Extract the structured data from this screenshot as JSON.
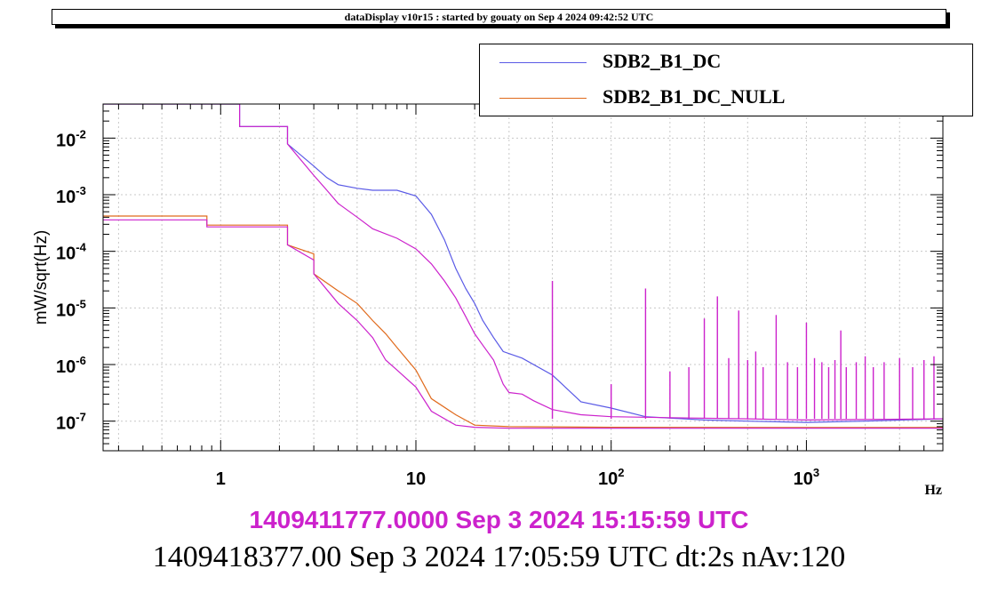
{
  "window": {
    "title": "dataDisplay v10r15 : started by gouaty on Sep  4 2024 09:42:52 UTC"
  },
  "colors": {
    "background": "#ffffff",
    "reference_time": "#cc22cc",
    "grid": "#c8c8c8"
  },
  "timestamps": {
    "reference": "1409411777.0000 Sep 3 2024 15:15:59 UTC",
    "current": "1409418377.00 Sep 3 2024 17:05:59 UTC dt:2s nAv:120"
  },
  "chart_data": {
    "type": "line",
    "title": "",
    "xlabel": "Hz",
    "ylabel": "mW/sqrt(Hz)",
    "x_scale": "log",
    "y_scale": "log",
    "xlim": [
      0.25,
      5000
    ],
    "ylim": [
      3e-08,
      0.04
    ],
    "grid": true,
    "legend_position": "top-right",
    "x_ticks": [
      {
        "value": 1,
        "label": "1"
      },
      {
        "value": 10,
        "label": "10"
      },
      {
        "value": 100,
        "label": "10",
        "exp": "2"
      },
      {
        "value": 1000,
        "label": "10",
        "exp": "3"
      }
    ],
    "y_ticks": [
      {
        "value": 0.01,
        "base": "10",
        "exp": "-2"
      },
      {
        "value": 0.001,
        "base": "10",
        "exp": "-3"
      },
      {
        "value": 0.0001,
        "base": "10",
        "exp": "-4"
      },
      {
        "value": 1e-05,
        "base": "10",
        "exp": "-5"
      },
      {
        "value": 1e-06,
        "base": "10",
        "exp": "-6"
      },
      {
        "value": 1e-07,
        "base": "10",
        "exp": "-7"
      }
    ],
    "series": [
      {
        "name": "SDB2_B1_DC",
        "color": "#5a5ae6",
        "x": [
          0.25,
          1.25,
          1.25,
          2.2,
          2.2,
          3.0,
          3.5,
          4.0,
          5.0,
          6.0,
          8.0,
          10.0,
          12.0,
          14.0,
          16.0,
          18.0,
          20.0,
          22.0,
          25.0,
          28.0,
          35.0,
          50.0,
          70.0,
          100.0,
          150.0,
          300.0,
          500.0,
          1000.0,
          2000.0,
          5000.0
        ],
        "y": [
          0.04,
          0.04,
          0.016,
          0.016,
          0.0079,
          0.0032,
          0.002,
          0.0015,
          0.0013,
          0.0012,
          0.0012,
          0.00095,
          0.00045,
          0.00016,
          5e-05,
          2.2e-05,
          1.2e-05,
          6e-06,
          3e-06,
          1.7e-06,
          1.3e-06,
          6.5e-07,
          2.2e-07,
          1.7e-07,
          1.2e-07,
          1.05e-07,
          1e-07,
          9.5e-08,
          1e-07,
          1.1e-07
        ]
      },
      {
        "name": "SDB2_B1_DC_NULL",
        "color": "#e06a1c",
        "x": [
          0.25,
          0.85,
          0.85,
          1.25,
          2.2,
          2.2,
          3.0,
          3.0,
          4.0,
          5.0,
          6.0,
          7.0,
          8.0,
          10.0,
          12.0,
          16.0,
          20.0,
          30.0,
          100.0,
          1000.0,
          5000.0
        ],
        "y": [
          0.00042,
          0.00042,
          0.00029,
          0.00029,
          0.00029,
          0.00013,
          9e-05,
          4e-05,
          2e-05,
          1.2e-05,
          6e-06,
          3.5e-06,
          2e-06,
          8e-07,
          2.5e-07,
          1.3e-07,
          8.5e-08,
          8e-08,
          7.8e-08,
          7.7e-08,
          7.7e-08
        ]
      },
      {
        "name": "",
        "color": "#cc22cc",
        "x": [
          0.25,
          1.25,
          1.25,
          2.2,
          2.2,
          3.0,
          3.5,
          4.0,
          5.0,
          6.0,
          8.0,
          10.0,
          12.0,
          14.0,
          16.0,
          18.0,
          20.0,
          22.0,
          25.0,
          28.0,
          30.0,
          35.0,
          40.0,
          50.0,
          70.0,
          100.0,
          200.0,
          500.0,
          1000.0,
          5000.0
        ],
        "y": [
          0.04,
          0.04,
          0.016,
          0.016,
          0.0079,
          0.0022,
          0.0012,
          0.0007,
          0.0004,
          0.00025,
          0.00017,
          0.00011,
          6e-05,
          3e-05,
          1.5e-05,
          7e-06,
          3.5e-06,
          2.2e-06,
          1.2e-06,
          4.5e-07,
          3.2e-07,
          3e-07,
          2.3e-07,
          1.6e-07,
          1.3e-07,
          1.2e-07,
          1.15e-07,
          1.1e-07,
          1.05e-07,
          1.1e-07
        ]
      },
      {
        "name": "",
        "color": "#cc22cc",
        "x": [
          0.25,
          0.85,
          0.85,
          1.25,
          2.2,
          2.2,
          3.0,
          3.0,
          4.0,
          5.0,
          6.0,
          7.0,
          8.0,
          10.0,
          12.0,
          16.0,
          20.0,
          30.0,
          100.0,
          1000.0,
          5000.0
        ],
        "y": [
          0.00036,
          0.00036,
          0.00027,
          0.00027,
          0.00027,
          0.00013,
          7e-05,
          4e-05,
          1.2e-05,
          6e-06,
          3e-06,
          1.2e-06,
          8e-07,
          4e-07,
          1.5e-07,
          8.5e-08,
          7.8e-08,
          7.5e-08,
          7.5e-08,
          7.5e-08,
          7.5e-08
        ]
      }
    ],
    "peaks": [
      {
        "x": 50,
        "y": 3e-05
      },
      {
        "x": 100,
        "y": 4.5e-07
      },
      {
        "x": 150,
        "y": 2.2e-05
      },
      {
        "x": 200,
        "y": 7.5e-07
      },
      {
        "x": 250,
        "y": 9e-07
      },
      {
        "x": 300,
        "y": 6.5e-06
      },
      {
        "x": 350,
        "y": 1.6e-05
      },
      {
        "x": 400,
        "y": 1.3e-06
      },
      {
        "x": 450,
        "y": 9e-06
      },
      {
        "x": 500,
        "y": 1.2e-06
      },
      {
        "x": 550,
        "y": 1.7e-06
      },
      {
        "x": 600,
        "y": 9e-07
      },
      {
        "x": 700,
        "y": 7.5e-06
      },
      {
        "x": 800,
        "y": 1.1e-06
      },
      {
        "x": 900,
        "y": 9e-07
      },
      {
        "x": 1000,
        "y": 5.5e-06
      },
      {
        "x": 1100,
        "y": 1.3e-06
      },
      {
        "x": 1200,
        "y": 1.1e-06
      },
      {
        "x": 1300,
        "y": 9e-07
      },
      {
        "x": 1400,
        "y": 1.2e-06
      },
      {
        "x": 1500,
        "y": 4e-06
      },
      {
        "x": 1600,
        "y": 9e-07
      },
      {
        "x": 1800,
        "y": 1.1e-06
      },
      {
        "x": 2000,
        "y": 1.4e-06
      },
      {
        "x": 2200,
        "y": 9e-07
      },
      {
        "x": 2500,
        "y": 1.1e-06
      },
      {
        "x": 3000,
        "y": 1.3e-06
      },
      {
        "x": 3500,
        "y": 9e-07
      },
      {
        "x": 4000,
        "y": 1.2e-06
      },
      {
        "x": 4500,
        "y": 1.4e-06
      }
    ]
  }
}
